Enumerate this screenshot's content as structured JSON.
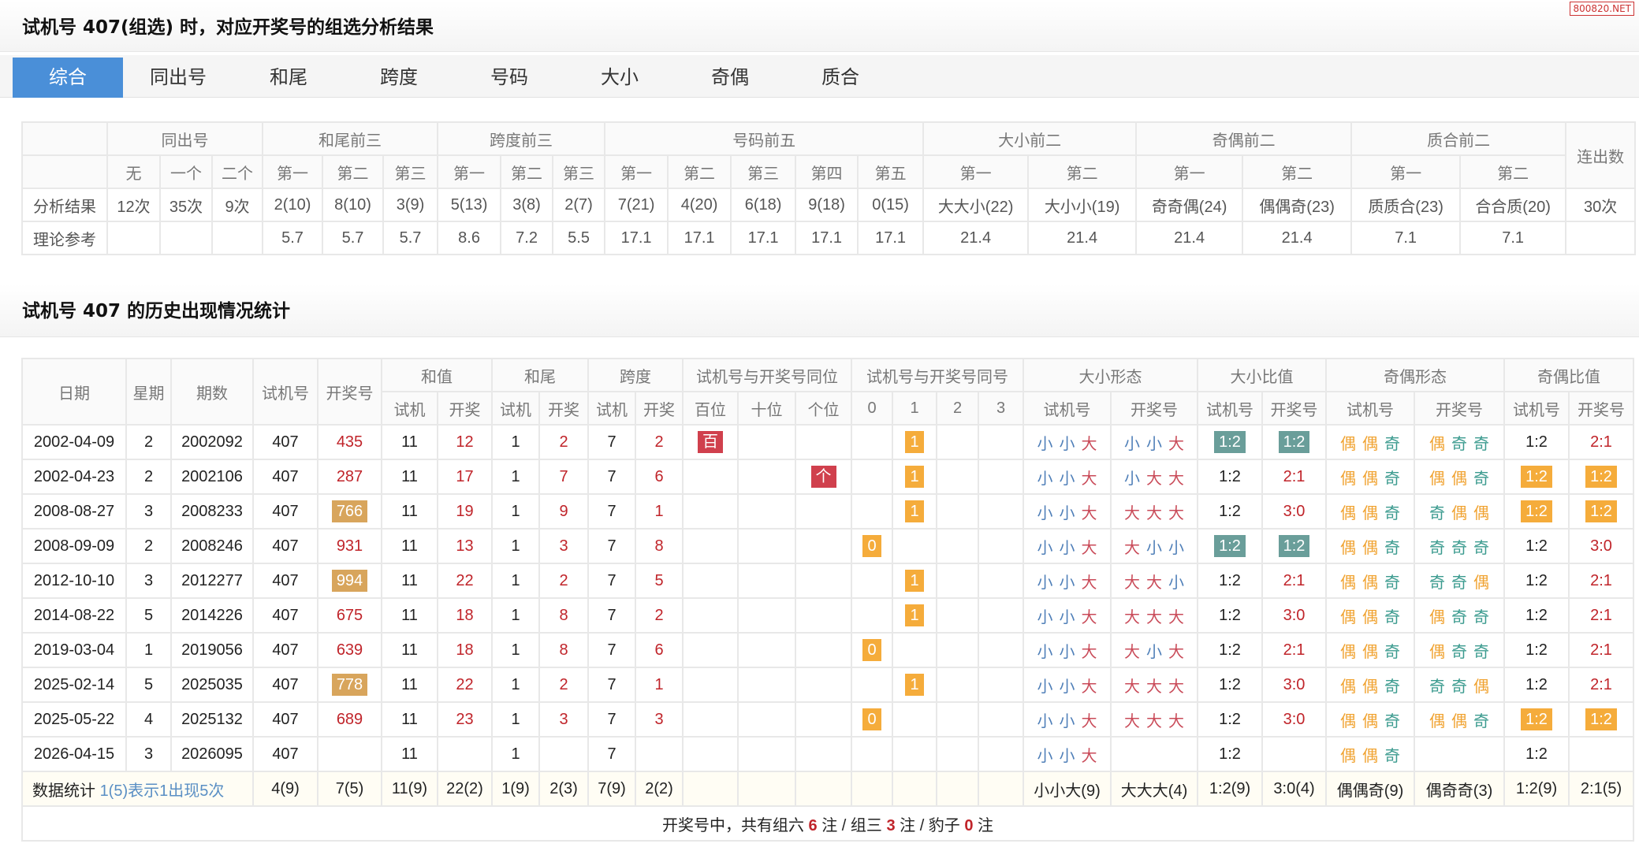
{
  "watermark": "800820.NET",
  "title1": "试机号 407(组选) 时，对应开奖号的组选分析结果",
  "tabs": [
    "综合",
    "同出号",
    "和尾",
    "跨度",
    "号码",
    "大小",
    "奇偶",
    "质合"
  ],
  "active_tab": 0,
  "summary": {
    "groups": [
      {
        "label": "",
        "span": 1
      },
      {
        "label": "同出号",
        "span": 3
      },
      {
        "label": "和尾前三",
        "span": 3
      },
      {
        "label": "跨度前三",
        "span": 3
      },
      {
        "label": "号码前五",
        "span": 5
      },
      {
        "label": "大小前二",
        "span": 2
      },
      {
        "label": "奇偶前二",
        "span": 2
      },
      {
        "label": "质合前二",
        "span": 2
      }
    ],
    "lianchu_label": "连出数",
    "subheaders": [
      "",
      "无",
      "一个",
      "二个",
      "第一",
      "第二",
      "第三",
      "第一",
      "第二",
      "第三",
      "第一",
      "第二",
      "第三",
      "第四",
      "第五",
      "第一",
      "第二",
      "第一",
      "第二",
      "第一",
      "第二"
    ],
    "rows": [
      [
        "分析结果",
        "12次",
        "35次",
        "9次",
        "2(10)",
        "8(10)",
        "3(9)",
        "5(13)",
        "3(8)",
        "2(7)",
        "7(21)",
        "4(20)",
        "6(18)",
        "9(18)",
        "0(15)",
        "大大小(22)",
        "大小小(19)",
        "奇奇偶(24)",
        "偶偶奇(23)",
        "质质合(23)",
        "合合质(20)",
        "30次"
      ],
      [
        "理论参考",
        "",
        "",
        "",
        "5.7",
        "5.7",
        "5.7",
        "8.6",
        "7.2",
        "5.5",
        "17.1",
        "17.1",
        "17.1",
        "17.1",
        "17.1",
        "21.4",
        "21.4",
        "21.4",
        "21.4",
        "7.1",
        "7.1",
        ""
      ]
    ]
  },
  "title2": "试机号 407 的历史出现情况统计",
  "history": {
    "single_headers": [
      "日期",
      "星期",
      "期数",
      "试机号",
      "开奖号"
    ],
    "groups": [
      {
        "label": "和值",
        "subs": [
          "试机",
          "开奖"
        ]
      },
      {
        "label": "和尾",
        "subs": [
          "试机",
          "开奖"
        ]
      },
      {
        "label": "跨度",
        "subs": [
          "试机",
          "开奖"
        ]
      },
      {
        "label": "试机号与开奖号同位",
        "subs": [
          "百位",
          "十位",
          "个位"
        ]
      },
      {
        "label": "试机号与开奖号同号",
        "subs": [
          "0",
          "1",
          "2",
          "3"
        ]
      },
      {
        "label": "大小形态",
        "subs": [
          "试机号",
          "开奖号"
        ]
      },
      {
        "label": "大小比值",
        "subs": [
          "试机号",
          "开奖号"
        ]
      },
      {
        "label": "奇偶形态",
        "subs": [
          "试机号",
          "开奖号"
        ]
      },
      {
        "label": "奇偶比值",
        "subs": [
          "试机号",
          "开奖号"
        ]
      }
    ],
    "rows": [
      {
        "date": "2002-04-09",
        "week": "2",
        "issue": "2002092",
        "trial": "407",
        "draw": "435",
        "draw_hl": false,
        "sum": [
          "11",
          "12"
        ],
        "tail": [
          "1",
          "2"
        ],
        "span": [
          "7",
          "2"
        ],
        "same_pos": "百",
        "same_count": "1",
        "bs": [
          "小小大",
          "小小大"
        ],
        "bsr": [
          "1:2",
          "1:2"
        ],
        "bsr_hl": "teal",
        "oe": [
          "偶偶奇",
          "偶奇奇"
        ],
        "oer": [
          "1:2",
          "2:1"
        ],
        "oer_hl": ""
      },
      {
        "date": "2002-04-23",
        "week": "2",
        "issue": "2002106",
        "trial": "407",
        "draw": "287",
        "draw_hl": false,
        "sum": [
          "11",
          "17"
        ],
        "tail": [
          "1",
          "7"
        ],
        "span": [
          "7",
          "6"
        ],
        "same_pos": "个",
        "same_count": "1",
        "bs": [
          "小小大",
          "小大大"
        ],
        "bsr": [
          "1:2",
          "2:1"
        ],
        "bsr_hl": "",
        "oe": [
          "偶偶奇",
          "偶偶奇"
        ],
        "oer": [
          "1:2",
          "1:2"
        ],
        "oer_hl": "orange"
      },
      {
        "date": "2008-08-27",
        "week": "3",
        "issue": "2008233",
        "trial": "407",
        "draw": "766",
        "draw_hl": true,
        "sum": [
          "11",
          "19"
        ],
        "tail": [
          "1",
          "9"
        ],
        "span": [
          "7",
          "1"
        ],
        "same_pos": "",
        "same_count": "1",
        "bs": [
          "小小大",
          "大大大"
        ],
        "bsr": [
          "1:2",
          "3:0"
        ],
        "bsr_hl": "",
        "oe": [
          "偶偶奇",
          "奇偶偶"
        ],
        "oer": [
          "1:2",
          "1:2"
        ],
        "oer_hl": "orange"
      },
      {
        "date": "2008-09-09",
        "week": "2",
        "issue": "2008246",
        "trial": "407",
        "draw": "931",
        "draw_hl": false,
        "sum": [
          "11",
          "13"
        ],
        "tail": [
          "1",
          "3"
        ],
        "span": [
          "7",
          "8"
        ],
        "same_pos": "",
        "same_count": "0",
        "bs": [
          "小小大",
          "大小小"
        ],
        "bsr": [
          "1:2",
          "1:2"
        ],
        "bsr_hl": "teal",
        "oe": [
          "偶偶奇",
          "奇奇奇"
        ],
        "oer": [
          "1:2",
          "3:0"
        ],
        "oer_hl": ""
      },
      {
        "date": "2012-10-10",
        "week": "3",
        "issue": "2012277",
        "trial": "407",
        "draw": "994",
        "draw_hl": true,
        "sum": [
          "11",
          "22"
        ],
        "tail": [
          "1",
          "2"
        ],
        "span": [
          "7",
          "5"
        ],
        "same_pos": "",
        "same_count": "1",
        "bs": [
          "小小大",
          "大大小"
        ],
        "bsr": [
          "1:2",
          "2:1"
        ],
        "bsr_hl": "",
        "oe": [
          "偶偶奇",
          "奇奇偶"
        ],
        "oer": [
          "1:2",
          "2:1"
        ],
        "oer_hl": ""
      },
      {
        "date": "2014-08-22",
        "week": "5",
        "issue": "2014226",
        "trial": "407",
        "draw": "675",
        "draw_hl": false,
        "sum": [
          "11",
          "18"
        ],
        "tail": [
          "1",
          "8"
        ],
        "span": [
          "7",
          "2"
        ],
        "same_pos": "",
        "same_count": "1",
        "bs": [
          "小小大",
          "大大大"
        ],
        "bsr": [
          "1:2",
          "3:0"
        ],
        "bsr_hl": "",
        "oe": [
          "偶偶奇",
          "偶奇奇"
        ],
        "oer": [
          "1:2",
          "2:1"
        ],
        "oer_hl": ""
      },
      {
        "date": "2019-03-04",
        "week": "1",
        "issue": "2019056",
        "trial": "407",
        "draw": "639",
        "draw_hl": false,
        "sum": [
          "11",
          "18"
        ],
        "tail": [
          "1",
          "8"
        ],
        "span": [
          "7",
          "6"
        ],
        "same_pos": "",
        "same_count": "0",
        "bs": [
          "小小大",
          "大小大"
        ],
        "bsr": [
          "1:2",
          "2:1"
        ],
        "bsr_hl": "",
        "oe": [
          "偶偶奇",
          "偶奇奇"
        ],
        "oer": [
          "1:2",
          "2:1"
        ],
        "oer_hl": ""
      },
      {
        "date": "2025-02-14",
        "week": "5",
        "issue": "2025035",
        "trial": "407",
        "draw": "778",
        "draw_hl": true,
        "sum": [
          "11",
          "22"
        ],
        "tail": [
          "1",
          "2"
        ],
        "span": [
          "7",
          "1"
        ],
        "same_pos": "",
        "same_count": "1",
        "bs": [
          "小小大",
          "大大大"
        ],
        "bsr": [
          "1:2",
          "3:0"
        ],
        "bsr_hl": "",
        "oe": [
          "偶偶奇",
          "奇奇偶"
        ],
        "oer": [
          "1:2",
          "2:1"
        ],
        "oer_hl": ""
      },
      {
        "date": "2025-05-22",
        "week": "4",
        "issue": "2025132",
        "trial": "407",
        "draw": "689",
        "draw_hl": false,
        "sum": [
          "11",
          "23"
        ],
        "tail": [
          "1",
          "3"
        ],
        "span": [
          "7",
          "3"
        ],
        "same_pos": "",
        "same_count": "0",
        "bs": [
          "小小大",
          "大大大"
        ],
        "bsr": [
          "1:2",
          "3:0"
        ],
        "bsr_hl": "",
        "oe": [
          "偶偶奇",
          "偶偶奇"
        ],
        "oer": [
          "1:2",
          "1:2"
        ],
        "oer_hl": "orange"
      },
      {
        "date": "2026-04-15",
        "week": "3",
        "issue": "2026095",
        "trial": "407",
        "draw": "",
        "draw_hl": false,
        "sum": [
          "11",
          ""
        ],
        "tail": [
          "1",
          ""
        ],
        "span": [
          "7",
          ""
        ],
        "same_pos": "",
        "same_count": "",
        "bs": [
          "小小大",
          ""
        ],
        "bsr": [
          "1:2",
          ""
        ],
        "bsr_hl": "",
        "oe": [
          "偶偶奇",
          ""
        ],
        "oer": [
          "1:2",
          ""
        ],
        "oer_hl": ""
      }
    ],
    "stats": {
      "label": "数据统计",
      "legend": "1(5)表示1出现5次",
      "values": [
        "4(9)",
        "7(5)",
        "11(9)",
        "22(2)",
        "1(9)",
        "2(3)",
        "7(9)",
        "2(2)",
        "",
        "",
        "",
        "",
        "",
        "",
        "",
        "小小大(9)",
        "大大大(4)",
        "1:2(9)",
        "3:0(4)",
        "偶偶奇(9)",
        "偶奇奇(3)",
        "1:2(9)",
        "2:1(5)"
      ]
    },
    "footer": {
      "prefix": "开奖号中，共有组六 ",
      "z6": "6",
      "mid1": " 注 / 组三 ",
      "z3": "3",
      "mid2": " 注 / 豹子 ",
      "bz": "0",
      "suffix": " 注"
    }
  },
  "colors": {
    "accent": "#4a8fd8",
    "red": "#c0242a",
    "badge_red": "#d0404d",
    "badge_orange": "#f5ac3b",
    "badge_tan": "#d8a55c",
    "badge_teal": "#6a9e9a",
    "small": "#4f7fb8",
    "big": "#c94a58",
    "even": "#f0a22f",
    "odd": "#3a9a8e"
  }
}
